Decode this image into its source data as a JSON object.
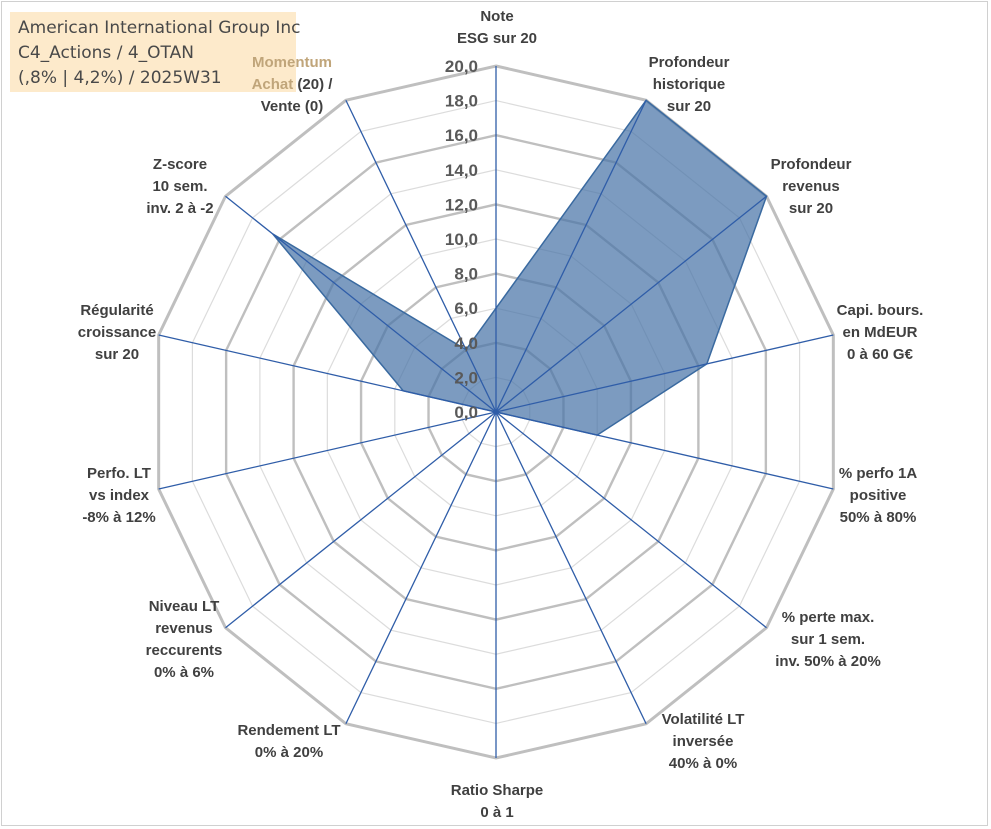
{
  "info": {
    "line1": "American International Group Inc",
    "line2": "C4_Actions / 4_OTAN",
    "line3": "(,8% | 4,2%) / 2025W31"
  },
  "chart_data": {
    "type": "radar",
    "title": "",
    "rmin": 0,
    "rmax": 20,
    "tick_step": 2,
    "tick_labels": [
      "0,0",
      "2,0",
      "4,0",
      "6,0",
      "8,0",
      "10,0",
      "12,0",
      "14,0",
      "16,0",
      "18,0",
      "20,0"
    ],
    "grid": true,
    "categories": [
      [
        "Note",
        "ESG sur 20"
      ],
      [
        "Profondeur",
        "historique",
        "sur 20"
      ],
      [
        "Profondeur",
        "revenus",
        "sur 20"
      ],
      [
        "Capi. bours.",
        "en MdEUR",
        "0 à 60 G€"
      ],
      [
        "% perfo 1A",
        "positive",
        "50% à 80%"
      ],
      [
        "% perte max.",
        "sur 1 sem.",
        "inv. 50% à 20%"
      ],
      [
        "Volatilité LT",
        "inversée",
        "40% à 0%"
      ],
      [
        "Ratio Sharpe",
        "0 à 1"
      ],
      [
        "Rendement LT",
        "0% à 20%"
      ],
      [
        "Niveau LT",
        "revenus",
        "reccurents",
        "0% à 6%"
      ],
      [
        "Perfo. LT",
        "vs index",
        "-8% à 12%"
      ],
      [
        "Régularité",
        "croissance",
        "sur 20"
      ],
      [
        "Z-score",
        "10 sem.",
        "inv. 2 à -2"
      ],
      [
        "Momentum",
        "Achat (20) /",
        "Vente (0)"
      ]
    ],
    "series": [
      {
        "values": [
          6.0,
          20.0,
          20.0,
          12.5,
          6.0,
          0.0,
          0.0,
          0.0,
          0.0,
          0.0,
          0.0,
          5.5,
          16.5,
          4.0
        ],
        "color": "#4a74a8"
      }
    ]
  }
}
